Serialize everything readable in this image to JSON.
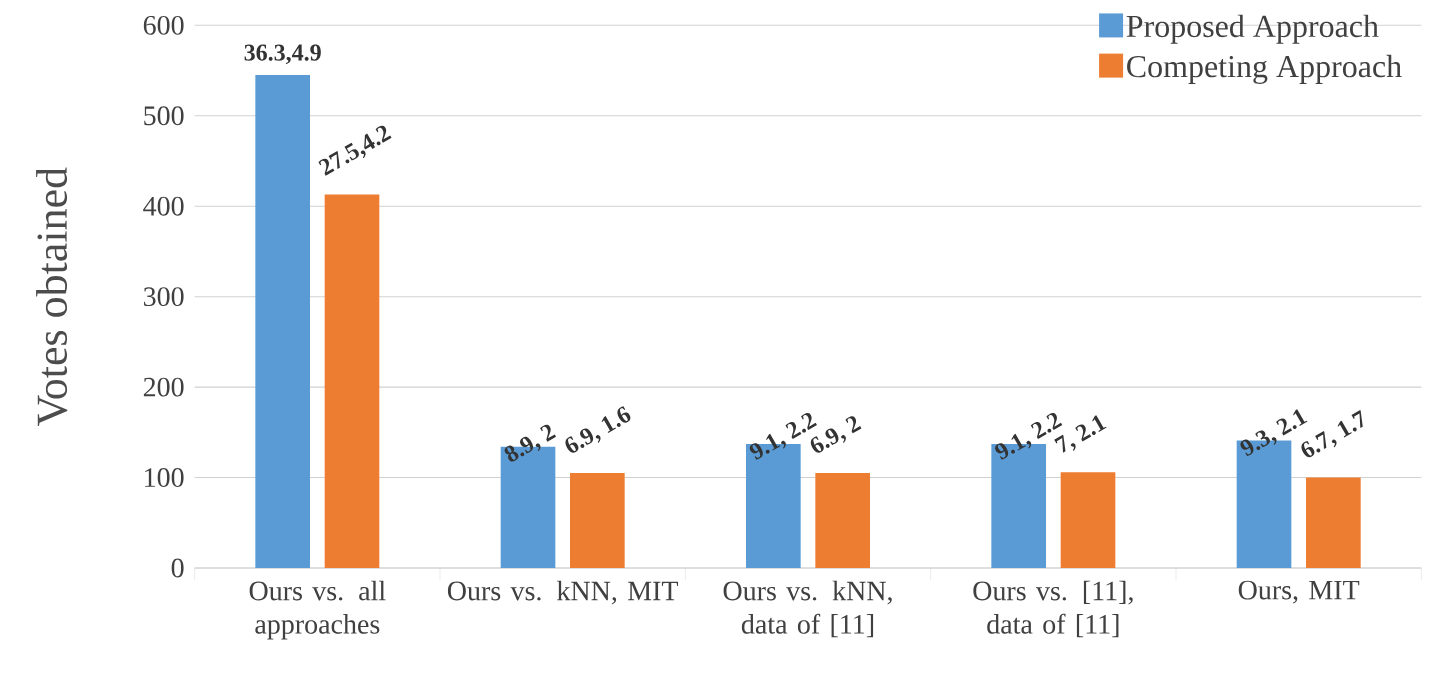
{
  "chart_data": {
    "type": "bar",
    "ylabel": "Votes obtained",
    "categories": [
      "Ours vs. all approaches",
      "Ours vs. kNN, MIT",
      "Ours vs. kNN, data of [11]",
      "Ours vs. [11], data of [11]",
      "Ours, MIT"
    ],
    "series": [
      {
        "name": "Proposed Approach",
        "color": "#5b9bd5",
        "values": [
          545,
          134,
          137,
          137,
          141
        ]
      },
      {
        "name": "Competing Approach",
        "color": "#ed7d31",
        "values": [
          413,
          105,
          105,
          106,
          100
        ]
      }
    ],
    "annotations": [
      "36.3,4.9",
      "27.5,4.2",
      "8.9, 2",
      "6.9, 1.6",
      "9.1, 2.2",
      "6.9, 2",
      "9.1, 2.2",
      "7, 2.1",
      "9.3, 2.1",
      "6.7, 1.7"
    ],
    "ylim": [
      0,
      600
    ],
    "yticks": [
      0,
      100,
      200,
      300,
      400,
      500,
      600
    ],
    "grid": "y",
    "legend": "top right"
  }
}
